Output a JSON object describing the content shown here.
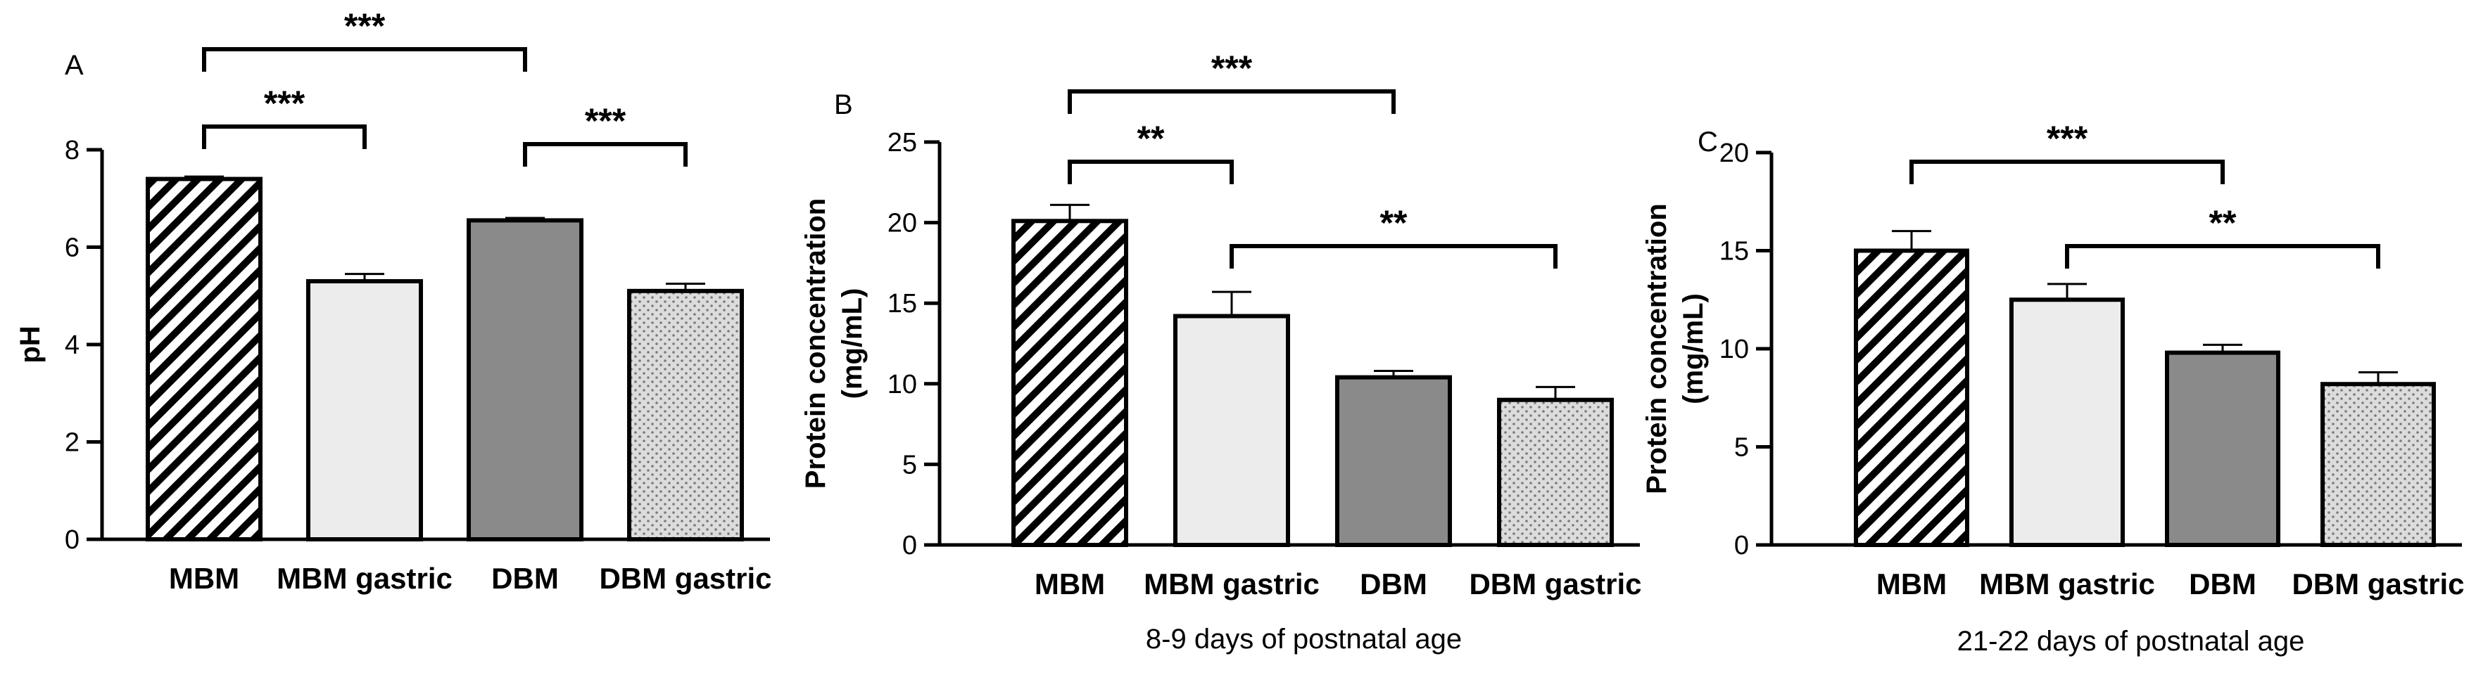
{
  "chart_data": [
    {
      "type": "bar",
      "panel": "A",
      "categories": [
        "MBM",
        "MBM gastric",
        "DBM",
        "DBM gastric"
      ],
      "values": [
        7.4,
        5.3,
        6.55,
        5.1
      ],
      "errors": [
        0.05,
        0.15,
        0.05,
        0.15
      ],
      "ylabel": "pH",
      "xlabel": "",
      "ylim": [
        0,
        8
      ],
      "yticks": [
        0,
        2,
        4,
        6,
        8
      ],
      "patterns": [
        "hatched",
        "light-gray",
        "dark-gray",
        "dotted"
      ],
      "significance": [
        {
          "from": 0,
          "to": 2,
          "label": "***"
        },
        {
          "from": 0,
          "to": 1,
          "label": "***"
        },
        {
          "from": 2,
          "to": 3,
          "label": "***"
        }
      ]
    },
    {
      "type": "bar",
      "panel": "B",
      "categories": [
        "MBM",
        "MBM gastric",
        "DBM",
        "DBM gastric"
      ],
      "values": [
        20.1,
        14.2,
        10.4,
        9.0
      ],
      "errors": [
        1.0,
        1.5,
        0.4,
        0.8
      ],
      "ylabel": "Protein concentration\n(mg/mL)",
      "xlabel": "8-9 days of postnatal age",
      "ylim": [
        0,
        25
      ],
      "yticks": [
        0,
        5,
        10,
        15,
        20,
        25
      ],
      "patterns": [
        "hatched",
        "light-gray",
        "dark-gray",
        "dotted"
      ],
      "significance": [
        {
          "from": 0,
          "to": 2,
          "label": "***"
        },
        {
          "from": 0,
          "to": 1,
          "label": "**"
        },
        {
          "from": 1,
          "to": 3,
          "label": "**"
        }
      ]
    },
    {
      "type": "bar",
      "panel": "C",
      "categories": [
        "MBM",
        "MBM gastric",
        "DBM",
        "DBM gastric"
      ],
      "values": [
        15.0,
        12.5,
        9.8,
        8.2
      ],
      "errors": [
        1.0,
        0.8,
        0.4,
        0.6
      ],
      "ylabel": "Protein concentration\n(mg/mL)",
      "xlabel": "21-22 days of postnatal age",
      "ylim": [
        0,
        20
      ],
      "yticks": [
        0,
        5,
        10,
        15,
        20
      ],
      "patterns": [
        "hatched",
        "light-gray",
        "dark-gray",
        "dotted"
      ],
      "significance": [
        {
          "from": 0,
          "to": 2,
          "label": "***"
        },
        {
          "from": 1,
          "to": 3,
          "label": "**"
        }
      ]
    }
  ],
  "colors": {
    "light_gray": "#ececec",
    "dark_gray": "#8a8a8a",
    "dotted_bg": "#dcdcdc",
    "dotted_dot": "#7a7a7a",
    "stroke": "#000000"
  }
}
